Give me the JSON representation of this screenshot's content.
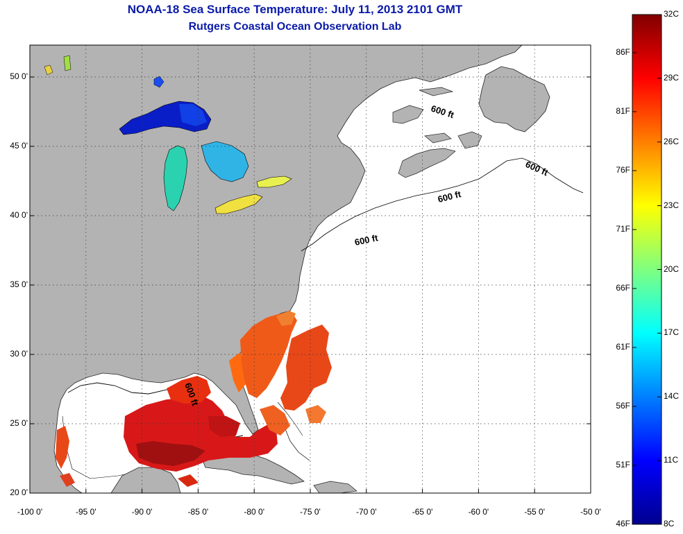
{
  "title": "NOAA-18 Sea Surface Temperature:  July 11, 2013 2101 GMT",
  "subtitle": "Rutgers Coastal Ocean Observation Lab",
  "map": {
    "lon_range": [
      -100,
      -50
    ],
    "lat_range": [
      20,
      52.3
    ],
    "lon_ticks": [
      "-100 0'",
      "-95 0'",
      "-90 0'",
      "-85 0'",
      "-80 0'",
      "-75 0'",
      "-70 0'",
      "-65 0'",
      "-60 0'",
      "-55 0'",
      "-50 0'"
    ],
    "lat_ticks": [
      "50 0'",
      "45 0'",
      "40 0'",
      "35 0'",
      "30 0'",
      "25 0'",
      "20 0'"
    ],
    "contour_label": "600 ft",
    "colors": {
      "land": "#b3b3b3",
      "ocean": "#ffffff",
      "grid": "#000000"
    }
  },
  "colorbar": {
    "celsius_labels": [
      "32C",
      "29C",
      "26C",
      "23C",
      "20C",
      "17C",
      "14C",
      "11C",
      "8C"
    ],
    "fahrenheit_labels": [
      "86F",
      "81F",
      "76F",
      "71F",
      "66F",
      "61F",
      "56F",
      "51F",
      "46F"
    ],
    "range_c": [
      8,
      32
    ],
    "colormap": "jet",
    "colors": [
      "#00008f",
      "#0000ff",
      "#00ffff",
      "#ffff00",
      "#ff0000",
      "#800000"
    ]
  }
}
